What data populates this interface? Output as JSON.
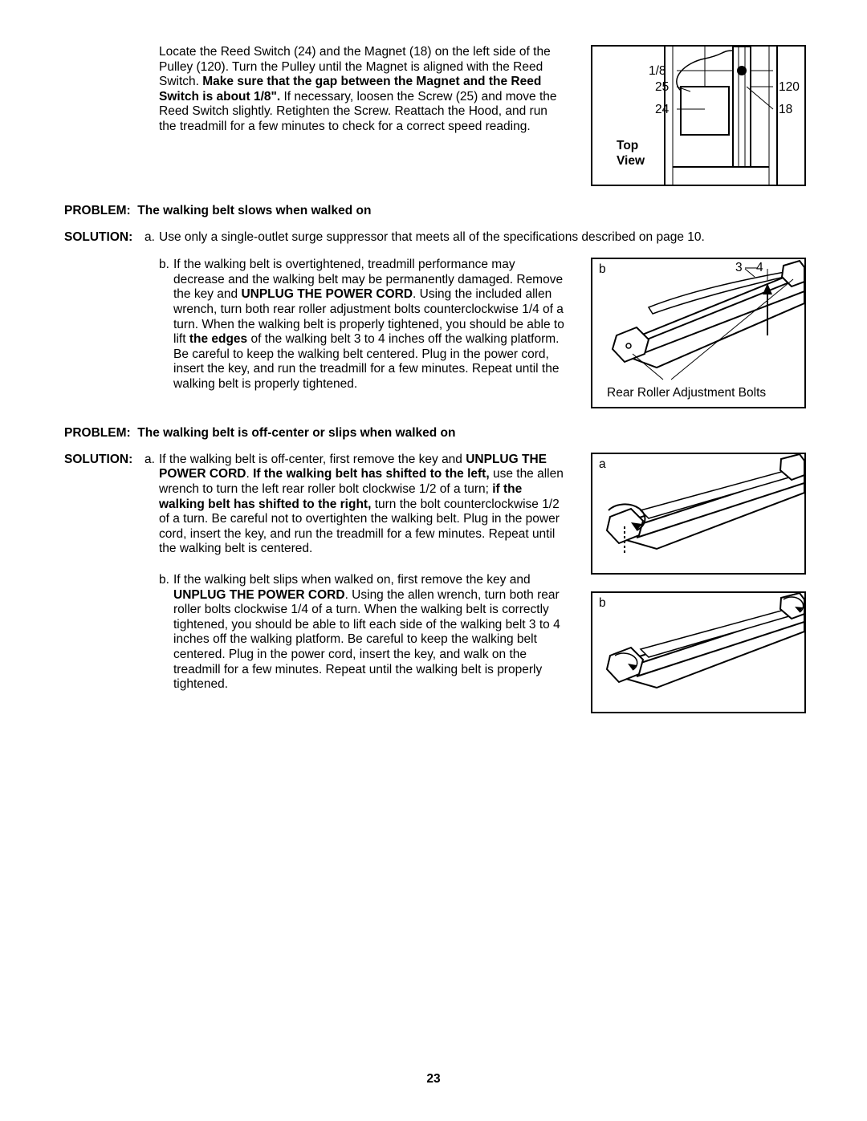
{
  "pageNumber": "23",
  "section1": {
    "paragraph_html": "Locate the Reed Switch (24) and the Magnet (18) on the left side of the Pulley (120). Turn the Pulley until the Magnet is aligned with the Reed Switch. <b>Make sure that the gap between the Magnet and the Reed Switch is about 1/8\".</b> If necessary, loosen the Screw (25) and move the Reed Switch slightly. Retighten the Screw. Reattach the Hood, and run the treadmill for a few minutes to check for a correct speed reading."
  },
  "figure1": {
    "labels": {
      "l1": "1/8",
      "l2": "25",
      "l3": "24",
      "l4": "120",
      "l5": "18",
      "view": "Top\nView"
    }
  },
  "problem1": {
    "label": "PROBLEM:",
    "text": "The walking belt slows when walked on"
  },
  "solution1": {
    "label": "SOLUTION:",
    "a_letter": "a.",
    "a_text": "Use only a single-outlet surge suppressor that meets all of the specifications described on page 10.",
    "b_letter": "b.",
    "b_html": "If the walking belt is overtightened, treadmill performance may decrease and the walking belt may be permanently damaged. Remove the key and <b>UNPLUG THE POWER CORD</b>. Using the included allen wrench, turn both rear roller adjustment bolts counterclockwise 1/4 of a turn. When the walking belt is properly tightened, you should be able to lift <b>the edges</b> of the walking belt 3 to 4 inches off the walking platform. Be careful to keep the walking belt centered. Plug in the power cord, insert the key, and run the treadmill for a few minutes. Repeat until the walking belt is properly tightened."
  },
  "figure2": {
    "corner": "b",
    "dim1": "3",
    "dim2": "4",
    "caption": "Rear Roller Adjustment Bolts"
  },
  "problem2": {
    "label": "PROBLEM:",
    "text": "The walking belt is off-center or slips when walked on"
  },
  "solution2": {
    "label": "SOLUTION:",
    "a_letter": "a.",
    "a_html": "If the walking belt is off-center, first remove the key and <b>UNPLUG THE POWER CORD</b>. <b>If the walking belt has shifted to the left,</b> use the allen wrench to turn the left rear roller bolt clockwise 1/2 of a turn; <b>if the walking belt has shifted to the right,</b> turn the bolt counterclockwise 1/2 of a turn. Be careful not to overtighten the walking belt. Plug in the power cord, insert the key, and run the treadmill for a few minutes. Repeat until the walking belt is centered.",
    "b_letter": "b.",
    "b_html": "If the walking belt slips when walked on, first remove the key and <b>UNPLUG THE POWER CORD</b>. Using the allen wrench, turn both rear roller bolts clockwise 1/4 of a turn. When the walking belt is correctly tightened, you should be able to lift each side of the walking belt 3 to 4 inches off the walking platform. Be careful to keep the walking belt centered. Plug in the power cord, insert the key, and walk on the treadmill for a few minutes. Repeat until the walking belt is properly tightened."
  },
  "figure3": {
    "corner": "a"
  },
  "figure4": {
    "corner": "b"
  }
}
